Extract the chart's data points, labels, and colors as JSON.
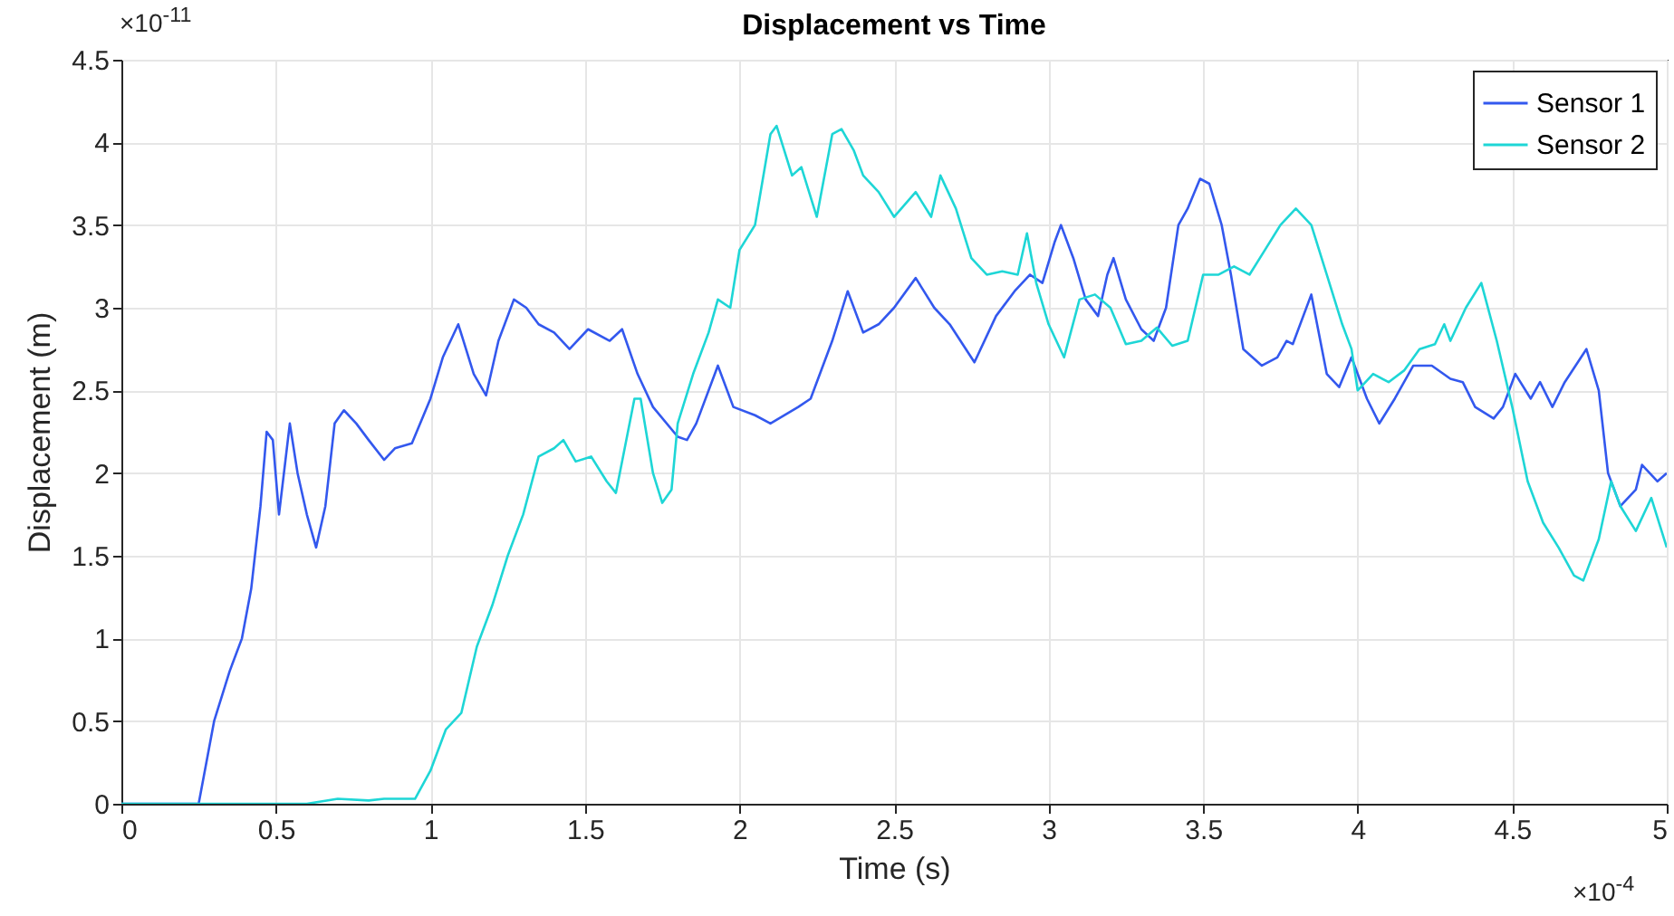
{
  "chart_data": {
    "type": "line",
    "title": "Displacement vs Time",
    "xlabel": "Time (s)",
    "ylabel": "Displacement (m)",
    "annotations": [
      "×10$^{-11}$",
      "×10$^{-4}$"
    ],
    "xlim": [
      0,
      5
    ],
    "ylim": [
      0,
      4.5
    ],
    "xticks": [
      0,
      0.5,
      1,
      1.5,
      2,
      2.5,
      3,
      3.5,
      4,
      4.5,
      5
    ],
    "yticks": [
      0,
      0.5,
      1,
      1.5,
      2,
      2.5,
      3,
      3.5,
      4,
      4.5
    ],
    "grid": true,
    "legend": "top right",
    "line_style": "solid",
    "series": [
      {
        "name": "Sensor 1",
        "color": "#3358ee",
        "x": [
          0,
          0.25,
          0.3,
          0.35,
          0.39,
          0.42,
          0.45,
          0.47,
          0.49,
          0.51,
          0.545,
          0.57,
          0.6,
          0.63,
          0.66,
          0.69,
          0.72,
          0.76,
          0.8,
          0.85,
          0.885,
          0.94,
          1,
          1.04,
          1.09,
          1.14,
          1.18,
          1.22,
          1.27,
          1.31,
          1.35,
          1.4,
          1.45,
          1.51,
          1.58,
          1.62,
          1.67,
          1.72,
          1.8,
          1.83,
          1.86,
          1.93,
          1.98,
          2.05,
          2.1,
          2.19,
          2.23,
          2.3,
          2.35,
          2.4,
          2.45,
          2.5,
          2.57,
          2.63,
          2.68,
          2.76,
          2.83,
          2.89,
          2.94,
          2.98,
          3.02,
          3.04,
          3.08,
          3.12,
          3.16,
          3.19,
          3.21,
          3.25,
          3.3,
          3.34,
          3.38,
          3.42,
          3.45,
          3.49,
          3.52,
          3.56,
          3.59,
          3.63,
          3.69,
          3.74,
          3.77,
          3.79,
          3.85,
          3.9,
          3.94,
          3.98,
          4.03,
          4.07,
          4.12,
          4.18,
          4.24,
          4.3,
          4.34,
          4.38,
          4.44,
          4.47,
          4.51,
          4.56,
          4.59,
          4.63,
          4.67,
          4.74,
          4.78,
          4.81,
          4.85,
          4.9,
          4.92,
          4.97,
          5
        ],
        "values": [
          0,
          0,
          0.5,
          0.8,
          1,
          1.3,
          1.8,
          2.25,
          2.2,
          1.75,
          2.3,
          2,
          1.75,
          1.55,
          1.8,
          2.3,
          2.38,
          2.3,
          2.2,
          2.08,
          2.15,
          2.18,
          2.45,
          2.7,
          2.9,
          2.6,
          2.47,
          2.8,
          3.05,
          3,
          2.9,
          2.85,
          2.75,
          2.87,
          2.8,
          2.87,
          2.6,
          2.4,
          2.22,
          2.2,
          2.3,
          2.65,
          2.4,
          2.35,
          2.3,
          2.4,
          2.45,
          2.8,
          3.1,
          2.85,
          2.9,
          3,
          3.18,
          3,
          2.9,
          2.67,
          2.95,
          3.1,
          3.2,
          3.15,
          3.4,
          3.5,
          3.3,
          3.05,
          2.95,
          3.2,
          3.3,
          3.05,
          2.87,
          2.8,
          3,
          3.5,
          3.6,
          3.78,
          3.75,
          3.5,
          3.2,
          2.75,
          2.65,
          2.7,
          2.8,
          2.78,
          3.08,
          2.6,
          2.52,
          2.7,
          2.45,
          2.3,
          2.45,
          2.65,
          2.65,
          2.57,
          2.55,
          2.4,
          2.33,
          2.4,
          2.6,
          2.45,
          2.55,
          2.4,
          2.55,
          2.75,
          2.5,
          2,
          1.8,
          1.9,
          2.05,
          1.95,
          2
        ]
      },
      {
        "name": "Sensor 2",
        "color": "#1ed6d6",
        "x": [
          0,
          0.6,
          0.7,
          0.8,
          0.85,
          0.95,
          1,
          1.05,
          1.1,
          1.15,
          1.2,
          1.25,
          1.3,
          1.35,
          1.4,
          1.43,
          1.47,
          1.52,
          1.57,
          1.6,
          1.66,
          1.68,
          1.72,
          1.75,
          1.78,
          1.8,
          1.85,
          1.9,
          1.93,
          1.97,
          2,
          2.05,
          2.1,
          2.12,
          2.17,
          2.2,
          2.25,
          2.3,
          2.33,
          2.37,
          2.4,
          2.45,
          2.5,
          2.57,
          2.62,
          2.65,
          2.7,
          2.75,
          2.8,
          2.85,
          2.9,
          2.93,
          2.96,
          3,
          3.05,
          3.1,
          3.15,
          3.2,
          3.25,
          3.3,
          3.35,
          3.4,
          3.45,
          3.5,
          3.55,
          3.6,
          3.65,
          3.7,
          3.75,
          3.8,
          3.85,
          3.9,
          3.95,
          3.98,
          4,
          4.05,
          4.1,
          4.15,
          4.2,
          4.25,
          4.28,
          4.3,
          4.35,
          4.4,
          4.45,
          4.5,
          4.55,
          4.6,
          4.65,
          4.7,
          4.73,
          4.78,
          4.82,
          4.85,
          4.9,
          4.95,
          5
        ],
        "values": [
          0,
          0,
          0.03,
          0.02,
          0.03,
          0.03,
          0.2,
          0.45,
          0.55,
          0.95,
          1.2,
          1.5,
          1.75,
          2.1,
          2.15,
          2.2,
          2.07,
          2.1,
          1.95,
          1.88,
          2.45,
          2.45,
          2,
          1.82,
          1.9,
          2.3,
          2.6,
          2.85,
          3.05,
          3,
          3.35,
          3.5,
          4.05,
          4.1,
          3.8,
          3.85,
          3.55,
          4.05,
          4.08,
          3.95,
          3.8,
          3.7,
          3.55,
          3.7,
          3.55,
          3.8,
          3.6,
          3.3,
          3.2,
          3.22,
          3.2,
          3.45,
          3.15,
          2.9,
          2.7,
          3.05,
          3.08,
          3,
          2.78,
          2.8,
          2.88,
          2.77,
          2.8,
          3.2,
          3.2,
          3.25,
          3.2,
          3.35,
          3.5,
          3.6,
          3.5,
          3.2,
          2.9,
          2.75,
          2.5,
          2.6,
          2.55,
          2.62,
          2.75,
          2.78,
          2.9,
          2.8,
          3,
          3.15,
          2.8,
          2.4,
          1.95,
          1.7,
          1.55,
          1.38,
          1.35,
          1.6,
          1.95,
          1.8,
          1.65,
          1.85,
          1.55
        ]
      }
    ]
  }
}
